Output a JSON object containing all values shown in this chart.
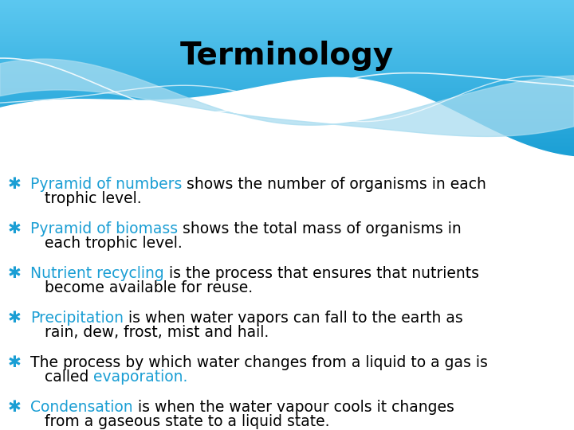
{
  "title": "Terminology",
  "title_color": "#000000",
  "title_fontsize": 28,
  "bg_color": "#ffffff",
  "header_top_color": "#1a9ed4",
  "header_bot_color": "#5cc8f0",
  "bullet_symbol": "✱",
  "bullet_color": "#1a9ed4",
  "items": [
    {
      "parts": [
        {
          "text": "Pyramid of numbers",
          "color": "#1a9ed4"
        },
        {
          "text": " shows the number of organisms in each",
          "color": "#000000"
        }
      ],
      "line2": "   trophic level."
    },
    {
      "parts": [
        {
          "text": "Pyramid of biomass",
          "color": "#1a9ed4"
        },
        {
          "text": " shows the total mass of organisms in",
          "color": "#000000"
        }
      ],
      "line2": "   each trophic level."
    },
    {
      "parts": [
        {
          "text": "Nutrient recycling",
          "color": "#1a9ed4"
        },
        {
          "text": " is the process that ensures that nutrients",
          "color": "#000000"
        }
      ],
      "line2": "   become available for reuse."
    },
    {
      "parts": [
        {
          "text": "Precipitation",
          "color": "#1a9ed4"
        },
        {
          "text": " is when water vapors can fall to the earth as",
          "color": "#000000"
        }
      ],
      "line2": "   rain, dew, frost, mist and hail."
    },
    {
      "parts": [
        {
          "text": "The process by which water changes from a liquid to a gas is",
          "color": "#000000"
        }
      ],
      "line2_parts": [
        {
          "text": "   called ",
          "color": "#000000"
        },
        {
          "text": "evaporation.",
          "color": "#1a9ed4"
        }
      ]
    },
    {
      "parts": [
        {
          "text": "Condensation",
          "color": "#1a9ed4"
        },
        {
          "text": " is when the water vapour cools it changes",
          "color": "#000000"
        }
      ],
      "line2": "   from a gaseous state to a liquid state."
    }
  ],
  "text_fontsize": 13.5,
  "figsize": [
    7.2,
    5.4
  ],
  "dpi": 100
}
